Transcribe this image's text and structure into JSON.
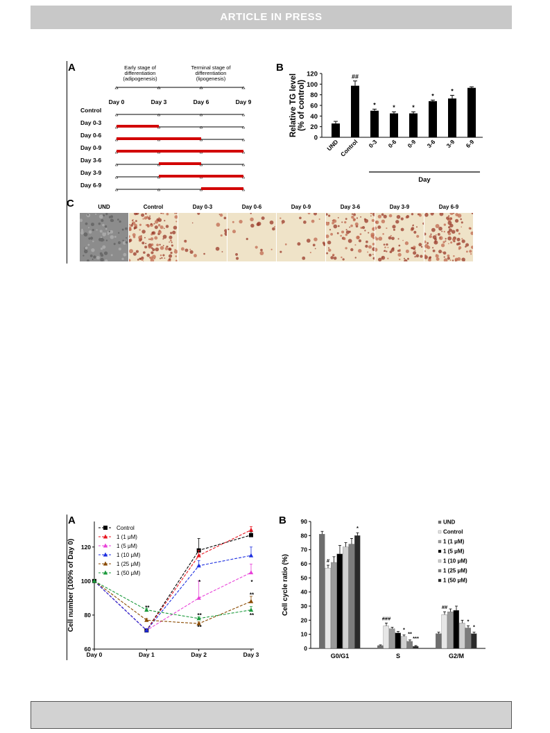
{
  "banner": {
    "text": "ARTICLE IN PRESS"
  },
  "figure1": {
    "panelA": {
      "label": "A",
      "stage_early": "Early stage of differentiation (adipogenesis)",
      "stage_early_lines": [
        "Early stage of",
        "differentiation",
        "(adipogenesis)"
      ],
      "stage_terminal_lines": [
        "Terminal stage of",
        "differentiation",
        "(lipogenesis)"
      ],
      "days": [
        "Day 0",
        "Day 3",
        "Day 6",
        "Day 9"
      ],
      "rows": [
        {
          "label": "Control",
          "start": null,
          "end": null
        },
        {
          "label": "Day 0-3",
          "start": 0,
          "end": 3
        },
        {
          "label": "Day 0-6",
          "start": 0,
          "end": 6
        },
        {
          "label": "Day 0-9",
          "start": 0,
          "end": 9
        },
        {
          "label": "Day 3-6",
          "start": 3,
          "end": 6
        },
        {
          "label": "Day 3-9",
          "start": 3,
          "end": 9
        },
        {
          "label": "Day 6-9",
          "start": 6,
          "end": 9
        }
      ],
      "bar_color": "#d20000"
    },
    "panelB": {
      "label": "B"
    },
    "panelC": {
      "label": "C",
      "labels": [
        "UND",
        "Control",
        "Day 0-3",
        "Day 0-6",
        "Day 0-9",
        "Day 3-6",
        "Day 3-9",
        "Day 6-9"
      ],
      "density": [
        0,
        0.9,
        0.1,
        0.1,
        0.1,
        0.55,
        0.5,
        0.7
      ]
    }
  },
  "figure2": {
    "panelA": {
      "label": "A"
    },
    "panelB": {
      "label": "B"
    }
  },
  "chart_data": [
    {
      "id": "tg-level",
      "type": "bar",
      "categories": [
        "UND",
        "Control",
        "0-3",
        "0-6",
        "0-9",
        "3-6",
        "3-9",
        "6-9"
      ],
      "values": [
        26,
        97,
        50,
        45,
        45,
        68,
        73,
        93
      ],
      "errors": [
        4,
        9,
        3,
        3,
        3,
        2,
        6,
        2
      ],
      "annotations": [
        "",
        "##",
        "*",
        "*",
        "*",
        "*",
        "*",
        ""
      ],
      "ylabel": "Relative TG level (% of control)",
      "ylabel_lines": [
        "Relative TG level",
        "(% of control)"
      ],
      "xlabel": "Day",
      "ylim": [
        0,
        120
      ],
      "yticks": [
        0,
        20,
        40,
        60,
        80,
        100,
        120
      ],
      "color": "#000000"
    },
    {
      "id": "cell-number",
      "type": "line",
      "x": [
        "Day 0",
        "Day 1",
        "Day 2",
        "Day 3"
      ],
      "ylabel": "Cell number (100% of Day 0)",
      "ylim": [
        60,
        135
      ],
      "yticks": [
        60,
        80,
        100,
        120
      ],
      "legend_position": "top-left",
      "series": [
        {
          "name": "Control",
          "color": "#000000",
          "values": [
            100,
            71,
            118,
            127
          ],
          "errors": [
            0,
            1,
            7,
            2
          ]
        },
        {
          "name": "1 (1 μM)",
          "color": "#e8141e",
          "values": [
            100,
            71,
            115,
            130
          ],
          "errors": [
            0,
            1,
            3,
            2
          ]
        },
        {
          "name": "1 (5 μM)",
          "color": "#e840d8",
          "values": [
            100,
            71,
            90,
            105
          ],
          "errors": [
            0,
            1,
            10,
            5
          ]
        },
        {
          "name": "1 (10 μM)",
          "color": "#1c2ee0",
          "values": [
            100,
            71,
            109,
            115
          ],
          "errors": [
            0,
            1,
            3,
            5
          ]
        },
        {
          "name": "1 (25 μM)",
          "color": "#8a4a00",
          "values": [
            100,
            77,
            75,
            88
          ],
          "errors": [
            0,
            1,
            1,
            3
          ]
        },
        {
          "name": "1 (50 μM)",
          "color": "#1c9a3c",
          "values": [
            100,
            83,
            78,
            83
          ],
          "errors": [
            0,
            1,
            1,
            2
          ]
        }
      ],
      "annotations": [
        {
          "x": "Day 1",
          "text": "**"
        },
        {
          "x": "Day 2",
          "text": "*"
        },
        {
          "x": "Day 2",
          "text": "**"
        },
        {
          "x": "Day 2",
          "text": "**"
        },
        {
          "x": "Day 3",
          "text": "*"
        },
        {
          "x": "Day 3",
          "text": "**"
        },
        {
          "x": "Day 3",
          "text": "**"
        }
      ]
    },
    {
      "id": "cell-cycle",
      "type": "bar",
      "categories": [
        "G0/G1",
        "S",
        "G2/M"
      ],
      "ylabel": "Cell cycle ratio (%)",
      "ylim": [
        0,
        90
      ],
      "yticks": [
        0,
        10,
        20,
        30,
        40,
        50,
        60,
        70,
        80,
        90
      ],
      "legend_position": "top-right",
      "series": [
        {
          "name": "UND",
          "color": "#6e6e6e",
          "values": [
            81,
            2,
            10.5
          ],
          "errors": [
            2,
            0.5,
            1
          ]
        },
        {
          "name": "Control",
          "color": "#e6e6e6",
          "values": [
            57,
            16,
            24
          ],
          "errors": [
            2,
            2,
            2
          ]
        },
        {
          "name": "1 (1 μM)",
          "color": "#9a9a9a",
          "values": [
            61,
            14,
            26
          ],
          "errors": [
            4,
            1,
            2
          ]
        },
        {
          "name": "1 (5 μM)",
          "color": "#000000",
          "values": [
            67,
            11,
            27
          ],
          "errors": [
            6,
            1,
            3
          ]
        },
        {
          "name": "1 (10 μM)",
          "color": "#cfcfcf",
          "values": [
            72,
            8.5,
            18
          ],
          "errors": [
            3,
            1,
            2
          ]
        },
        {
          "name": "1 (25 μM)",
          "color": "#7c7c7c",
          "values": [
            74,
            5,
            14.5
          ],
          "errors": [
            4,
            1,
            1.5
          ]
        },
        {
          "name": "1 (50 μM)",
          "color": "#2a2a2a",
          "values": [
            80,
            1.5,
            10.5
          ],
          "errors": [
            2,
            0.5,
            1
          ]
        }
      ],
      "annotations": [
        {
          "category": "G0/G1",
          "text": "#"
        },
        {
          "category": "G0/G1",
          "text": "*"
        },
        {
          "category": "S",
          "text": "###"
        },
        {
          "category": "S",
          "text": "*"
        },
        {
          "category": "S",
          "text": "**"
        },
        {
          "category": "S",
          "text": "***"
        },
        {
          "category": "G2/M",
          "text": "##"
        },
        {
          "category": "G2/M",
          "text": "*"
        },
        {
          "category": "G2/M",
          "text": "*"
        }
      ]
    }
  ]
}
